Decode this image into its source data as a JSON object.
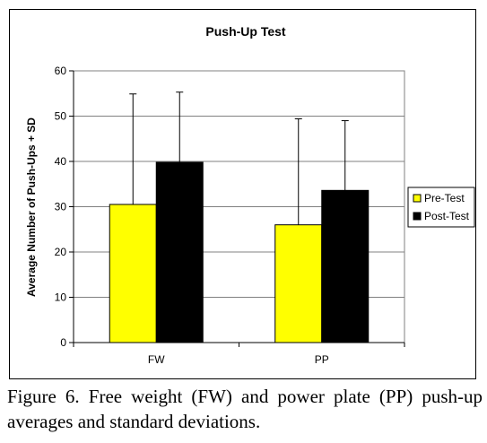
{
  "figure_caption": "Figure 6. Free weight (FW) and power plate (PP) push-up averages and standard deviations.",
  "chart_data": {
    "type": "bar",
    "title": "Push-Up Test",
    "xlabel": "",
    "ylabel": "Average Number of Push-Ups + SD",
    "categories": [
      "FW",
      "PP"
    ],
    "ylim": [
      0,
      60
    ],
    "yticks": [
      0,
      10,
      20,
      30,
      40,
      50,
      60
    ],
    "grid": true,
    "legend_position": "right",
    "series": [
      {
        "name": "Pre-Test",
        "color": "#ffff00",
        "values": [
          30.5,
          26.0
        ],
        "error_plus": [
          24.4,
          23.4
        ]
      },
      {
        "name": "Post-Test",
        "color": "#000000",
        "values": [
          39.8,
          33.6
        ],
        "error_plus": [
          15.5,
          15.4
        ]
      }
    ]
  }
}
